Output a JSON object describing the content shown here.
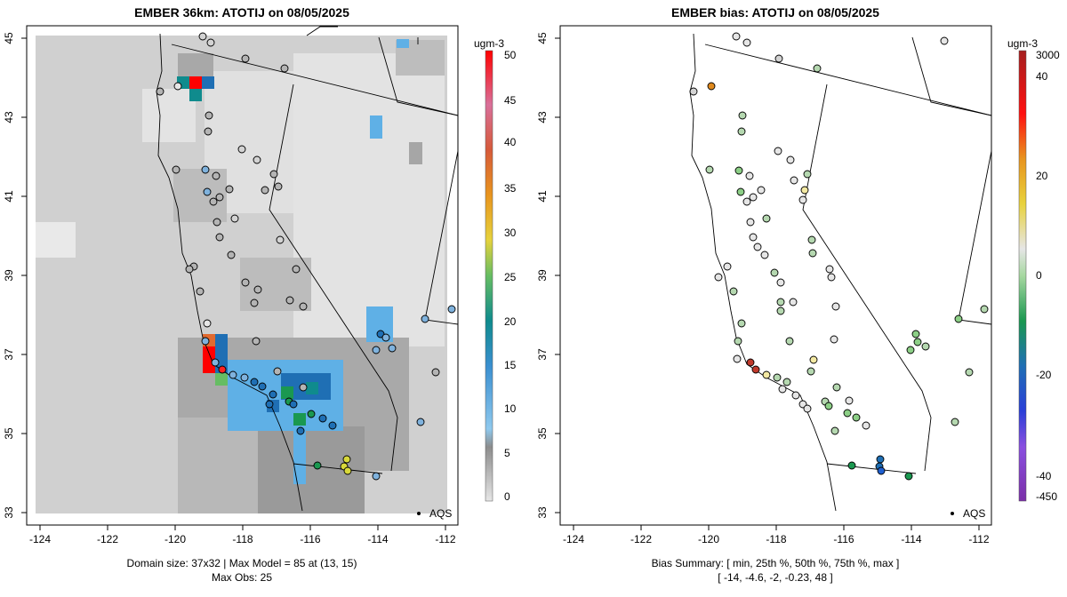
{
  "left_panel": {
    "title": "EMBER 36km: ATOTIJ on 08/05/2025",
    "caption_line1": "Domain size: 37x32 | Max Model = 85 at (13, 15)",
    "caption_line2": "Max Obs: 25",
    "legend_marker": "AQS",
    "colorbar_unit": "ugm-3",
    "colorbar_ticks": [
      "50",
      "45",
      "40",
      "35",
      "30",
      "25",
      "20",
      "15",
      "10",
      "5",
      "0"
    ]
  },
  "right_panel": {
    "title": "EMBER bias: ATOTIJ on 08/05/2025",
    "caption_line1": "Bias Summary: [ min, 25th %, 50th %, 75th %, max ]",
    "caption_line2": "[ -14,   -4.6,   -2,   -0.23,   48 ]",
    "legend_marker": "AQS",
    "colorbar_unit": "ugm-3",
    "colorbar_ticks": [
      "3000",
      "40",
      "20",
      "0",
      "-20",
      "-40",
      "-450"
    ]
  },
  "axes": {
    "x_ticks": [
      "-124",
      "-122",
      "-120",
      "-118",
      "-116",
      "-114",
      "-112"
    ],
    "y_ticks": [
      "33",
      "35",
      "37",
      "39",
      "41",
      "43",
      "45"
    ]
  },
  "colors": {
    "background_field": "#e2e2e2",
    "high": "#ff0000",
    "mid": "#1a9850",
    "low": "#4aa3df"
  }
}
